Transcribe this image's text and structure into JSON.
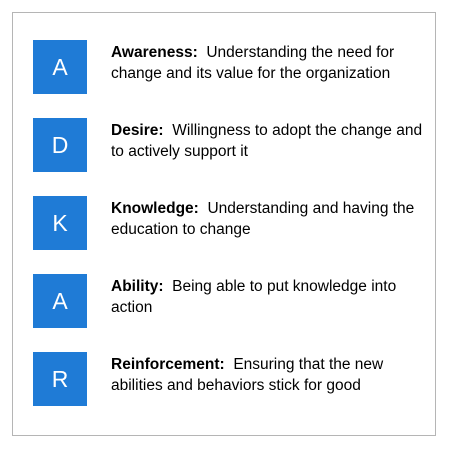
{
  "items": [
    {
      "letter": "A",
      "term": "Awareness:",
      "description": "Understanding the need for change and its value for the organization"
    },
    {
      "letter": "D",
      "term": "Desire:",
      "description": "Willingness to adopt the change and to actively support it"
    },
    {
      "letter": "K",
      "term": "Knowledge:",
      "description": "Understanding and having the education to change"
    },
    {
      "letter": "A",
      "term": "Ability:",
      "description": "Being able to put knowledge into action"
    },
    {
      "letter": "R",
      "term": "Reinforcement:",
      "description": "Ensuring that the new abilities and behaviors stick for good"
    }
  ],
  "colors": {
    "badge": "#1f7bd6",
    "border": "#b5b5b5"
  }
}
